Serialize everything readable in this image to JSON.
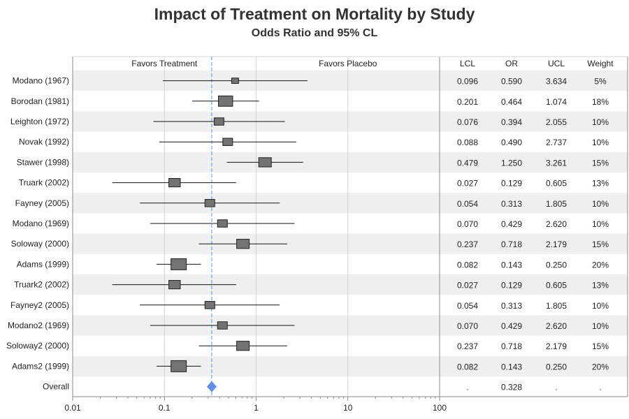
{
  "title": "Impact of Treatment on Mortality by Study",
  "subtitle": "Odds Ratio and 95% CL",
  "colors": {
    "marker_fill": "#737373",
    "overall_marker": "#5f8fe8",
    "reference_line": "#5b8fe0",
    "band": "#efefef",
    "grid": "#d4d4d4",
    "axis": "#8a8a8a"
  },
  "chart_data": {
    "type": "forest",
    "x_scale": "log",
    "xlim": [
      0.01,
      100
    ],
    "x_ticks": [
      0.01,
      0.1,
      1,
      10,
      100
    ],
    "x_tick_labels": [
      "0.01",
      "0.1",
      "1",
      "10",
      "100"
    ],
    "reference_line": 0.328,
    "region_labels": {
      "left": "Favors Treatment",
      "right": "Favors Placebo"
    },
    "table_headers": [
      "LCL",
      "OR",
      "UCL",
      "Weight"
    ],
    "grid": true,
    "alternating_bands": true,
    "studies": [
      {
        "name": "Modano (1967)",
        "lcl": 0.096,
        "or": 0.59,
        "ucl": 3.634,
        "weight": 0.05,
        "cells": [
          "0.096",
          "0.590",
          "3.634",
          "5%"
        ]
      },
      {
        "name": "Borodan (1981)",
        "lcl": 0.201,
        "or": 0.464,
        "ucl": 1.074,
        "weight": 0.18,
        "cells": [
          "0.201",
          "0.464",
          "1.074",
          "18%"
        ]
      },
      {
        "name": "Leighton (1972)",
        "lcl": 0.076,
        "or": 0.394,
        "ucl": 2.055,
        "weight": 0.1,
        "cells": [
          "0.076",
          "0.394",
          "2.055",
          "10%"
        ]
      },
      {
        "name": "Novak (1992)",
        "lcl": 0.088,
        "or": 0.49,
        "ucl": 2.737,
        "weight": 0.1,
        "cells": [
          "0.088",
          "0.490",
          "2.737",
          "10%"
        ]
      },
      {
        "name": "Stawer (1998)",
        "lcl": 0.479,
        "or": 1.25,
        "ucl": 3.261,
        "weight": 0.15,
        "cells": [
          "0.479",
          "1.250",
          "3.261",
          "15%"
        ]
      },
      {
        "name": "Truark (2002)",
        "lcl": 0.027,
        "or": 0.129,
        "ucl": 0.605,
        "weight": 0.13,
        "cells": [
          "0.027",
          "0.129",
          "0.605",
          "13%"
        ]
      },
      {
        "name": "Fayney (2005)",
        "lcl": 0.054,
        "or": 0.313,
        "ucl": 1.805,
        "weight": 0.1,
        "cells": [
          "0.054",
          "0.313",
          "1.805",
          "10%"
        ]
      },
      {
        "name": "Modano (1969)",
        "lcl": 0.07,
        "or": 0.429,
        "ucl": 2.62,
        "weight": 0.1,
        "cells": [
          "0.070",
          "0.429",
          "2.620",
          "10%"
        ]
      },
      {
        "name": "Soloway (2000)",
        "lcl": 0.237,
        "or": 0.718,
        "ucl": 2.179,
        "weight": 0.15,
        "cells": [
          "0.237",
          "0.718",
          "2.179",
          "15%"
        ]
      },
      {
        "name": "Adams (1999)",
        "lcl": 0.082,
        "or": 0.143,
        "ucl": 0.25,
        "weight": 0.2,
        "cells": [
          "0.082",
          "0.143",
          "0.250",
          "20%"
        ]
      },
      {
        "name": "Truark2 (2002)",
        "lcl": 0.027,
        "or": 0.129,
        "ucl": 0.605,
        "weight": 0.13,
        "cells": [
          "0.027",
          "0.129",
          "0.605",
          "13%"
        ]
      },
      {
        "name": "Fayney2 (2005)",
        "lcl": 0.054,
        "or": 0.313,
        "ucl": 1.805,
        "weight": 0.1,
        "cells": [
          "0.054",
          "0.313",
          "1.805",
          "10%"
        ]
      },
      {
        "name": "Modano2 (1969)",
        "lcl": 0.07,
        "or": 0.429,
        "ucl": 2.62,
        "weight": 0.1,
        "cells": [
          "0.070",
          "0.429",
          "2.620",
          "10%"
        ]
      },
      {
        "name": "Soloway2 (2000)",
        "lcl": 0.237,
        "or": 0.718,
        "ucl": 2.179,
        "weight": 0.15,
        "cells": [
          "0.237",
          "0.718",
          "2.179",
          "15%"
        ]
      },
      {
        "name": "Adams2 (1999)",
        "lcl": 0.082,
        "or": 0.143,
        "ucl": 0.25,
        "weight": 0.2,
        "cells": [
          "0.082",
          "0.143",
          "0.250",
          "20%"
        ]
      }
    ],
    "overall": {
      "name": "Overall",
      "or": 0.328,
      "cells": [
        ".",
        "0.328",
        ".",
        "."
      ]
    }
  }
}
